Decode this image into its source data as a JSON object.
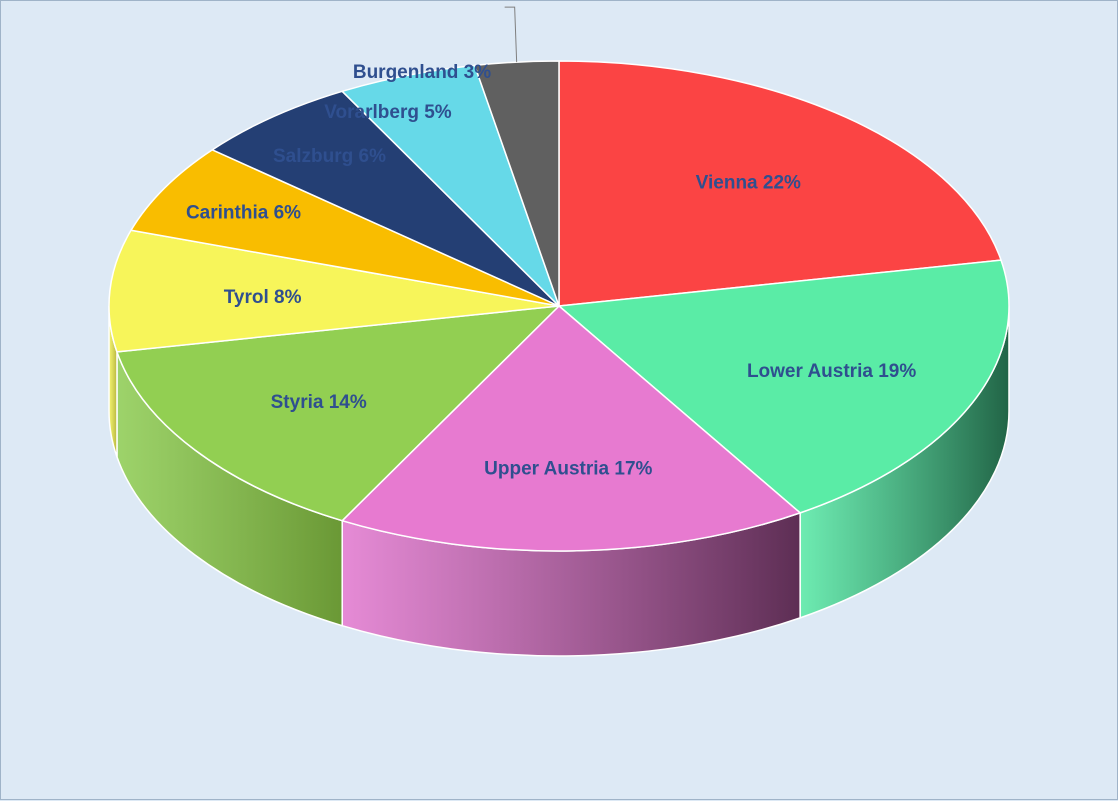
{
  "chart_data": {
    "type": "pie",
    "title": "",
    "categories": [
      "Vienna",
      "Lower Austria",
      "Upper Austria",
      "Styria",
      "Tyrol",
      "Carinthia",
      "Salzburg",
      "Vorarlberg",
      "Burgenland"
    ],
    "values": [
      22,
      19,
      17,
      14,
      8,
      6,
      6,
      5,
      3
    ],
    "labels": [
      "Vienna 22%",
      "Lower Austria 19%",
      "Upper Austria 17%",
      "Styria 14%",
      "Tyrol 8%",
      "Carinthia 6%",
      "Salzburg 6%",
      "Vorarlberg 5%",
      "Burgenland 3%"
    ],
    "colors": [
      "#fb4444",
      "#5aeca6",
      "#e77ad0",
      "#92cf52",
      "#f7f55a",
      "#f9bd00",
      "#243f74",
      "#66d9e8",
      "#606060"
    ],
    "side_colors": [
      "#a83030",
      "#216446",
      "#5d2e54",
      "#6a9835",
      "#b8b63f",
      "#b58800",
      "#172a4f",
      "#45a0ab",
      "#404040"
    ],
    "style": "3d",
    "legend": "none",
    "label_color": "#2f4f8f"
  }
}
